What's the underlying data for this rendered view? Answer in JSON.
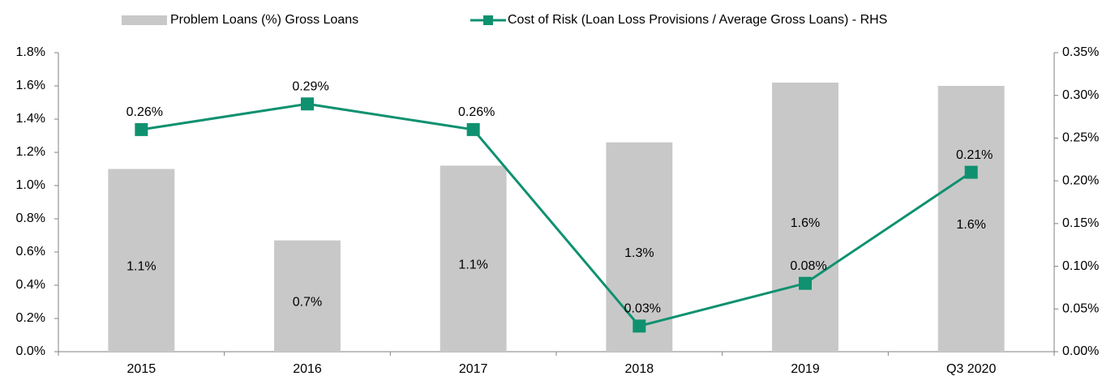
{
  "chart_data": {
    "type": "bar",
    "categories": [
      "2015",
      "2016",
      "2017",
      "2018",
      "2019",
      "Q3 2020"
    ],
    "series": [
      {
        "name": "Problem Loans (%) Gross Loans",
        "color": "#c8c8c8",
        "type": "bar",
        "values": [
          1.1,
          0.67,
          1.12,
          1.26,
          1.62,
          1.6
        ],
        "value_labels": [
          "1.1%",
          "0.7%",
          "1.1%",
          "1.3%",
          "1.6%",
          "1.6%"
        ]
      },
      {
        "name": "Cost of Risk (Loan Loss Provisions / Average Gross Loans) - RHS",
        "color": "#0f9170",
        "type": "line",
        "axis": "y2",
        "values": [
          0.26,
          0.29,
          0.26,
          0.03,
          0.08,
          0.21
        ],
        "value_labels": [
          "0.26%",
          "0.29%",
          "0.26%",
          "0.03%",
          "0.08%",
          "0.21%"
        ]
      }
    ],
    "ylim": [
      0,
      1.8
    ],
    "yticks": [
      {
        "value": 0,
        "label": "0.0%"
      },
      {
        "value": 0.2,
        "label": "0.2%"
      },
      {
        "value": 0.4,
        "label": "0.4%"
      },
      {
        "value": 0.6,
        "label": "0.6%"
      },
      {
        "value": 0.8,
        "label": "0.8%"
      },
      {
        "value": 1.0,
        "label": "1.0%"
      },
      {
        "value": 1.2,
        "label": "1.2%"
      },
      {
        "value": 1.4,
        "label": "1.4%"
      },
      {
        "value": 1.6,
        "label": "1.6%"
      },
      {
        "value": 1.8,
        "label": "1.8%"
      }
    ],
    "y2lim": [
      0,
      0.35
    ],
    "y2ticks": [
      {
        "value": 0,
        "label": "0.00%"
      },
      {
        "value": 0.05,
        "label": "0.05%"
      },
      {
        "value": 0.1,
        "label": "0.10%"
      },
      {
        "value": 0.15,
        "label": "0.15%"
      },
      {
        "value": 0.2,
        "label": "0.20%"
      },
      {
        "value": 0.25,
        "label": "0.25%"
      },
      {
        "value": 0.3,
        "label": "0.30%"
      },
      {
        "value": 0.35,
        "label": "0.35%"
      }
    ],
    "legend": "top",
    "grid": false
  }
}
